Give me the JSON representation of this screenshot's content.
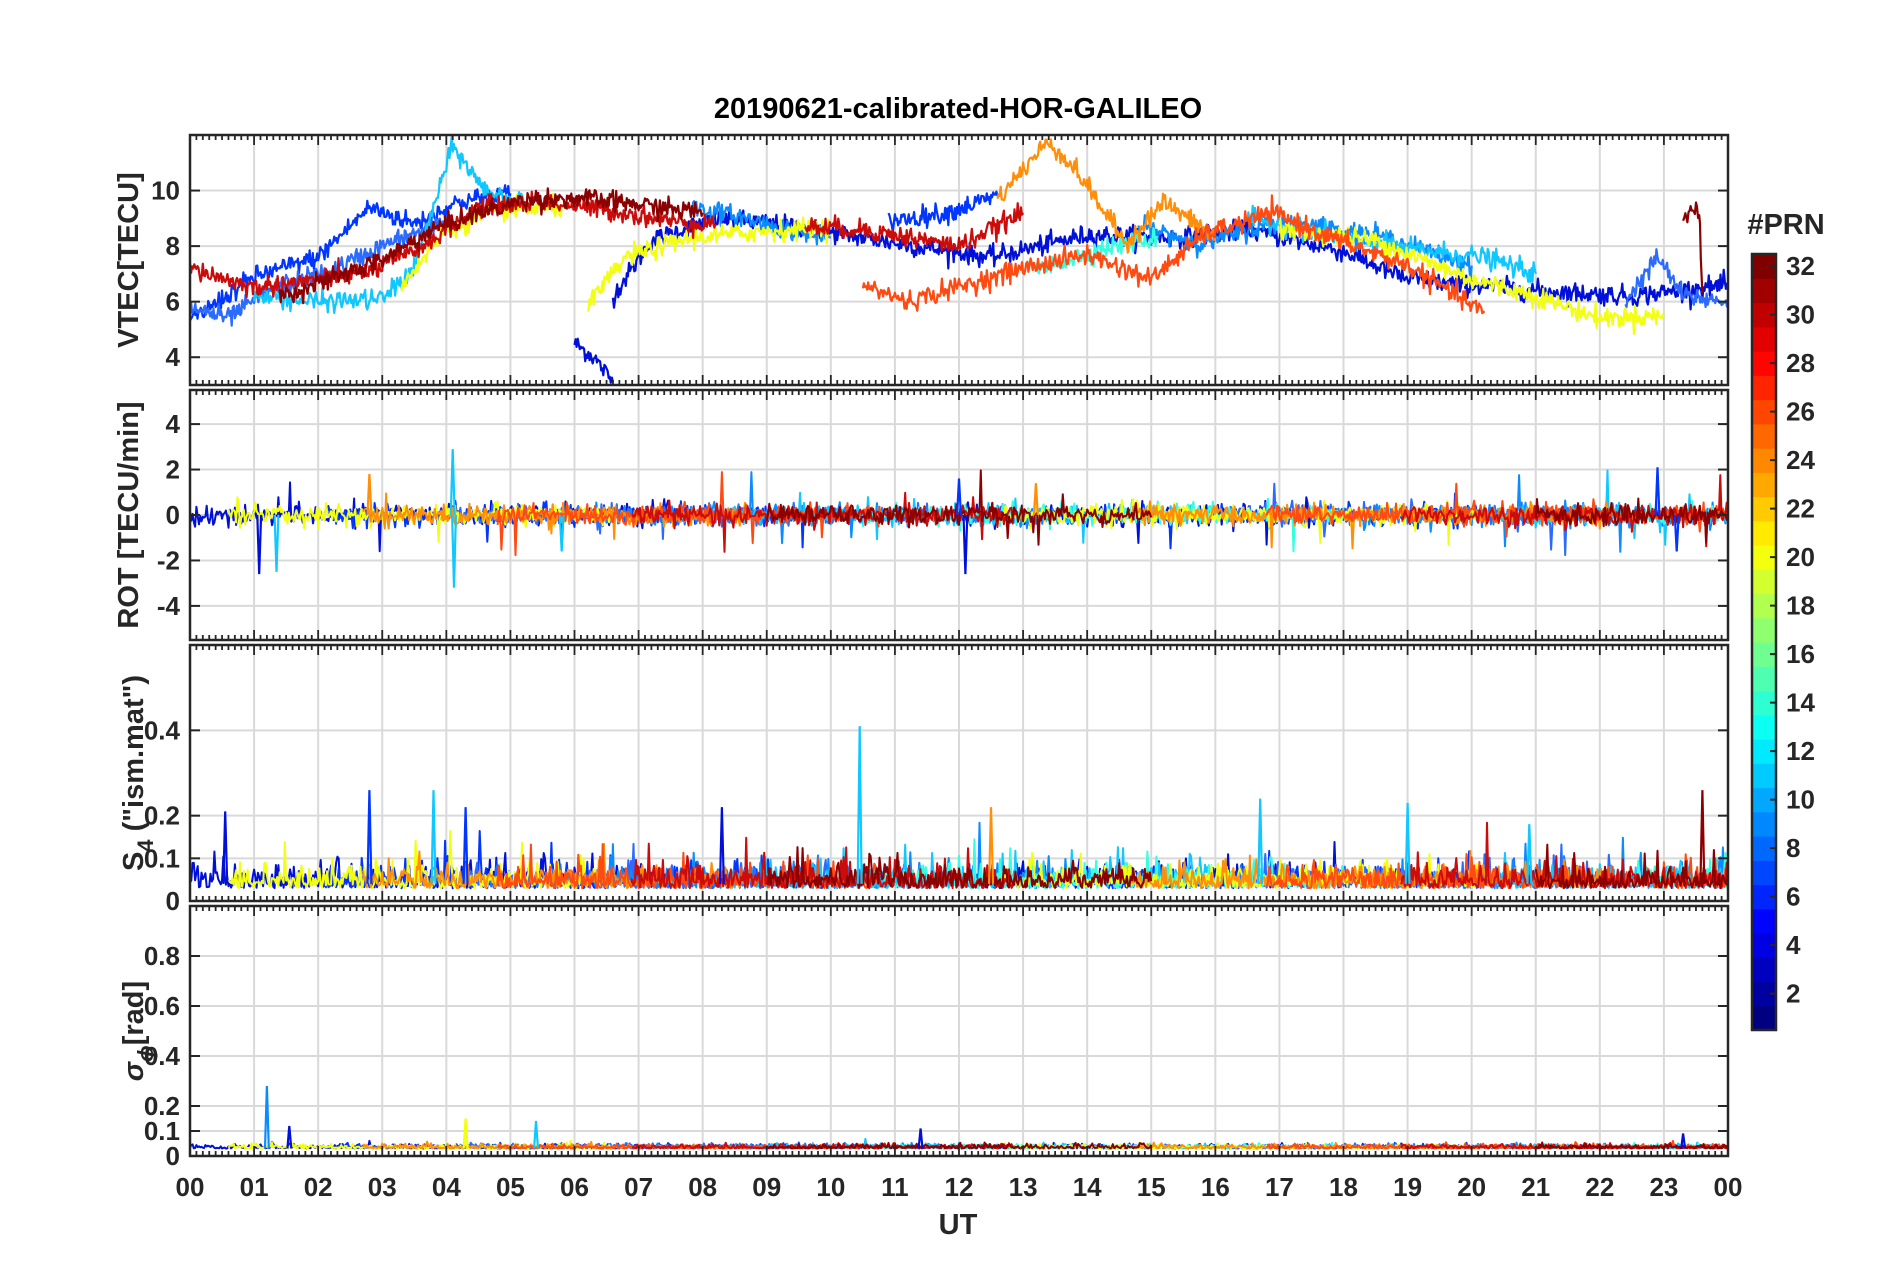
{
  "chart_data": {
    "type": "line",
    "title": "20190621-calibrated-HOR-GALILEO",
    "x_axis": {
      "label": "UT",
      "range": [
        0,
        24
      ],
      "tick_labels": [
        "00",
        "01",
        "02",
        "03",
        "04",
        "05",
        "06",
        "07",
        "08",
        "09",
        "10",
        "11",
        "12",
        "13",
        "14",
        "15",
        "16",
        "17",
        "18",
        "19",
        "20",
        "21",
        "22",
        "23",
        "00"
      ]
    },
    "panels": [
      {
        "id": "vtec",
        "ylabel": "VTEC[TECU]",
        "ylim": [
          3,
          12
        ],
        "yticks": [
          4,
          6,
          8,
          10
        ],
        "ytick_labels": [
          "4",
          "6",
          "8",
          "10"
        ],
        "grid": true,
        "series": [
          {
            "name": "PRN 2",
            "color": "#0010d9",
            "segments": [
              [
                [
                  6.0,
                  4.5
                ],
                [
                  6.3,
                  4.0
                ],
                [
                  6.6,
                  3.1
                ]
              ],
              [
                [
                  6.6,
                  6.2
                ],
                [
                  7.2,
                  8.2
                ],
                [
                  8.2,
                  9.0
                ],
                [
                  9.5,
                  8.7
                ],
                [
                  11.0,
                  8.1
                ],
                [
                  12.5,
                  7.6
                ],
                [
                  14.0,
                  8.4
                ],
                [
                  15.5,
                  8.3
                ],
                [
                  16.5,
                  8.6
                ],
                [
                  18.0,
                  7.8
                ],
                [
                  19.0,
                  6.8
                ],
                [
                  21.0,
                  6.4
                ],
                [
                  22.5,
                  6.2
                ],
                [
                  24.0,
                  6.6
                ]
              ]
            ]
          },
          {
            "name": "PRN 4",
            "color": "#0036ff",
            "segments": [
              [
                [
                  0.0,
                  5.3
                ],
                [
                  1.0,
                  6.9
                ],
                [
                  2.0,
                  7.6
                ],
                [
                  2.8,
                  9.4
                ],
                [
                  3.5,
                  8.8
                ],
                [
                  4.2,
                  9.6
                ],
                [
                  5.0,
                  9.9
                ]
              ],
              [
                [
                  10.9,
                  8.9
                ],
                [
                  11.8,
                  9.2
                ],
                [
                  12.6,
                  9.8
                ]
              ]
            ]
          },
          {
            "name": "PRN 5",
            "color": "#2b6bff",
            "segments": [
              [
                [
                  0.0,
                  5.8
                ],
                [
                  0.6,
                  5.4
                ],
                [
                  1.3,
                  6.5
                ],
                [
                  2.2,
                  7.1
                ],
                [
                  3.0,
                  8.0
                ],
                [
                  4.0,
                  8.9
                ]
              ],
              [
                [
                  22.4,
                  6.0
                ],
                [
                  22.9,
                  7.6
                ],
                [
                  23.3,
                  6.2
                ],
                [
                  24.0,
                  6.0
                ]
              ]
            ]
          },
          {
            "name": "PRN 8",
            "color": "#0a8cff",
            "segments": [
              [
                [
                  7.8,
                  9.4
                ],
                [
                  8.5,
                  9.1
                ],
                [
                  9.3,
                  8.6
                ],
                [
                  10.0,
                  8.3
                ]
              ],
              [
                [
                  14.8,
                  8.7
                ],
                [
                  15.8,
                  8.1
                ],
                [
                  17.0,
                  8.9
                ],
                [
                  18.5,
                  8.4
                ],
                [
                  20.0,
                  7.3
                ]
              ]
            ]
          },
          {
            "name": "PRN 11",
            "color": "#11c7ff",
            "segments": [
              [
                [
                  1.0,
                  6.2
                ],
                [
                  2.0,
                  6.0
                ],
                [
                  3.0,
                  6.1
                ],
                [
                  3.5,
                  7.2
                ],
                [
                  4.1,
                  11.6
                ],
                [
                  4.6,
                  10.0
                ],
                [
                  5.2,
                  9.6
                ]
              ],
              [
                [
                  16.5,
                  9.0
                ],
                [
                  17.8,
                  8.4
                ],
                [
                  19.0,
                  7.9
                ],
                [
                  20.2,
                  7.6
                ],
                [
                  21.0,
                  7.0
                ]
              ]
            ]
          },
          {
            "name": "PRN 13",
            "color": "#35ffe0",
            "segments": [
              [
                [
                  13.2,
                  7.1
                ],
                [
                  14.2,
                  7.9
                ],
                [
                  15.1,
                  8.3
                ]
              ]
            ]
          },
          {
            "name": "PRN 19",
            "color": "#f3ff10",
            "segments": [
              [
                [
                  3.3,
                  6.6
                ],
                [
                  4.0,
                  8.6
                ],
                [
                  4.9,
                  9.3
                ],
                [
                  5.8,
                  9.4
                ]
              ],
              [
                [
                  6.2,
                  5.8
                ],
                [
                  6.8,
                  7.6
                ],
                [
                  7.8,
                  8.3
                ],
                [
                  8.8,
                  8.5
                ],
                [
                  10.0,
                  8.7
                ]
              ],
              [
                [
                  17.0,
                  8.6
                ],
                [
                  18.5,
                  8.2
                ],
                [
                  20.0,
                  6.8
                ],
                [
                  21.0,
                  6.2
                ],
                [
                  22.0,
                  5.4
                ],
                [
                  23.0,
                  5.5
                ]
              ]
            ]
          },
          {
            "name": "PRN 24",
            "color": "#ff8f0a",
            "segments": [
              [
                [
                  12.6,
                  9.7
                ],
                [
                  13.4,
                  11.8
                ],
                [
                  13.9,
                  10.5
                ],
                [
                  14.6,
                  8.1
                ],
                [
                  15.2,
                  9.6
                ],
                [
                  16.0,
                  8.3
                ]
              ]
            ]
          },
          {
            "name": "PRN 26",
            "color": "#ff4a12",
            "segments": [
              [
                [
                  10.5,
                  6.6
                ],
                [
                  11.2,
                  6.0
                ],
                [
                  12.1,
                  6.6
                ],
                [
                  13.0,
                  7.2
                ],
                [
                  14.0,
                  7.7
                ],
                [
                  15.0,
                  6.8
                ],
                [
                  15.8,
                  8.4
                ],
                [
                  16.9,
                  9.2
                ],
                [
                  17.8,
                  8.3
                ],
                [
                  19.0,
                  7.3
                ],
                [
                  20.2,
                  5.6
                ]
              ]
            ]
          },
          {
            "name": "PRN 30",
            "color": "#cc0b0b",
            "segments": [
              [
                [
                  0.0,
                  7.2
                ],
                [
                  1.0,
                  6.5
                ],
                [
                  2.0,
                  6.8
                ],
                [
                  2.8,
                  7.1
                ],
                [
                  3.5,
                  7.8
                ],
                [
                  4.5,
                  9.4
                ],
                [
                  5.5,
                  9.6
                ],
                [
                  6.5,
                  9.3
                ],
                [
                  7.5,
                  8.9
                ],
                [
                  8.2,
                  8.8
                ]
              ],
              [
                [
                  9.6,
                  8.7
                ],
                [
                  10.5,
                  8.6
                ],
                [
                  12.0,
                  8.0
                ],
                [
                  13.0,
                  9.2
                ]
              ]
            ]
          },
          {
            "name": "PRN 32",
            "color": "#8b0000",
            "segments": [
              [
                [
                  1.4,
                  6.2
                ],
                [
                  2.2,
                  6.8
                ],
                [
                  3.0,
                  7.5
                ],
                [
                  3.8,
                  8.6
                ],
                [
                  4.5,
                  9.2
                ],
                [
                  5.3,
                  9.7
                ],
                [
                  6.2,
                  9.7
                ],
                [
                  7.0,
                  9.5
                ],
                [
                  8.0,
                  9.2
                ]
              ],
              [
                [
                  23.3,
                  9.1
                ],
                [
                  23.55,
                  9.3
                ],
                [
                  23.6,
                  6.3
                ]
              ]
            ]
          }
        ]
      },
      {
        "id": "rot",
        "ylabel": "ROT [TECU/min]",
        "ylim": [
          -5.5,
          5.5
        ],
        "yticks": [
          -4,
          -2,
          0,
          2,
          4
        ],
        "ytick_labels": [
          "-4",
          "-2",
          "0",
          "2",
          "4"
        ],
        "grid": true,
        "series_note": "Rate of TEC per PRN; noisy oscillation around 0 with peak magnitudes listed",
        "peaks": [
          {
            "t": 1.08,
            "v": -2.6,
            "color": "#0010d9"
          },
          {
            "t": 1.35,
            "v": -2.5,
            "color": "#11c7ff"
          },
          {
            "t": 2.8,
            "v": 1.8,
            "color": "#ff8f0a"
          },
          {
            "t": 4.1,
            "v": 2.9,
            "color": "#11c7ff"
          },
          {
            "t": 4.12,
            "v": -3.2,
            "color": "#11c7ff"
          },
          {
            "t": 5.8,
            "v": -1.6,
            "color": "#11c7ff"
          },
          {
            "t": 12.1,
            "v": -2.6,
            "color": "#0010d9"
          },
          {
            "t": 12.0,
            "v": 1.6,
            "color": "#0036ff"
          },
          {
            "t": 13.2,
            "v": 1.4,
            "color": "#ff8f0a"
          },
          {
            "t": 22.9,
            "v": 2.1,
            "color": "#0036ff"
          },
          {
            "t": 23.2,
            "v": -1.6,
            "color": "#0036ff"
          }
        ]
      },
      {
        "id": "s4",
        "ylabel_main": "S",
        "ylabel_sub": "4",
        "ylabel_rest": " (\"ism.mat\")",
        "ylim": [
          0,
          0.6
        ],
        "yticks": [
          0,
          0.1,
          0.2,
          0.4
        ],
        "ytick_labels": [
          "0",
          "0.1",
          "0.2",
          "0.4"
        ],
        "grid": true,
        "peaks": [
          {
            "t": 0.55,
            "v": 0.21,
            "color": "#0010d9"
          },
          {
            "t": 2.8,
            "v": 0.26,
            "color": "#0036ff"
          },
          {
            "t": 3.8,
            "v": 0.26,
            "color": "#11c7ff"
          },
          {
            "t": 4.3,
            "v": 0.22,
            "color": "#0036ff"
          },
          {
            "t": 8.3,
            "v": 0.22,
            "color": "#0010d9"
          },
          {
            "t": 10.45,
            "v": 0.41,
            "color": "#11c7ff"
          },
          {
            "t": 12.5,
            "v": 0.22,
            "color": "#ff8f0a"
          },
          {
            "t": 16.7,
            "v": 0.24,
            "color": "#11c7ff"
          },
          {
            "t": 19.0,
            "v": 0.23,
            "color": "#11c7ff"
          },
          {
            "t": 20.9,
            "v": 0.18,
            "color": "#11c7ff"
          },
          {
            "t": 23.6,
            "v": 0.26,
            "color": "#8b0000"
          }
        ]
      },
      {
        "id": "sigma_phi",
        "ylabel_main": "σ",
        "ylabel_sub": "ϕ",
        "ylabel_rest": "[rad]",
        "ylim": [
          0,
          1.0
        ],
        "yticks": [
          0,
          0.1,
          0.2,
          0.4,
          0.6,
          0.8
        ],
        "ytick_labels": [
          "0",
          "0.1",
          "0.2",
          "0.4",
          "0.6",
          "0.8"
        ],
        "grid": true,
        "peaks": [
          {
            "t": 1.2,
            "v": 0.28,
            "color": "#0a8cff"
          },
          {
            "t": 1.55,
            "v": 0.12,
            "color": "#0010d9"
          },
          {
            "t": 4.3,
            "v": 0.15,
            "color": "#f3ff10"
          },
          {
            "t": 5.4,
            "v": 0.14,
            "color": "#11c7ff"
          },
          {
            "t": 11.4,
            "v": 0.11,
            "color": "#0010d9"
          },
          {
            "t": 23.3,
            "v": 0.09,
            "color": "#0010d9"
          }
        ]
      }
    ],
    "colorbar": {
      "label": "#PRN",
      "range": [
        1,
        32
      ],
      "tick_labels": [
        "2",
        "4",
        "6",
        "8",
        "10",
        "12",
        "14",
        "16",
        "18",
        "20",
        "22",
        "24",
        "26",
        "28",
        "30",
        "32"
      ],
      "colormap": "jet"
    }
  }
}
